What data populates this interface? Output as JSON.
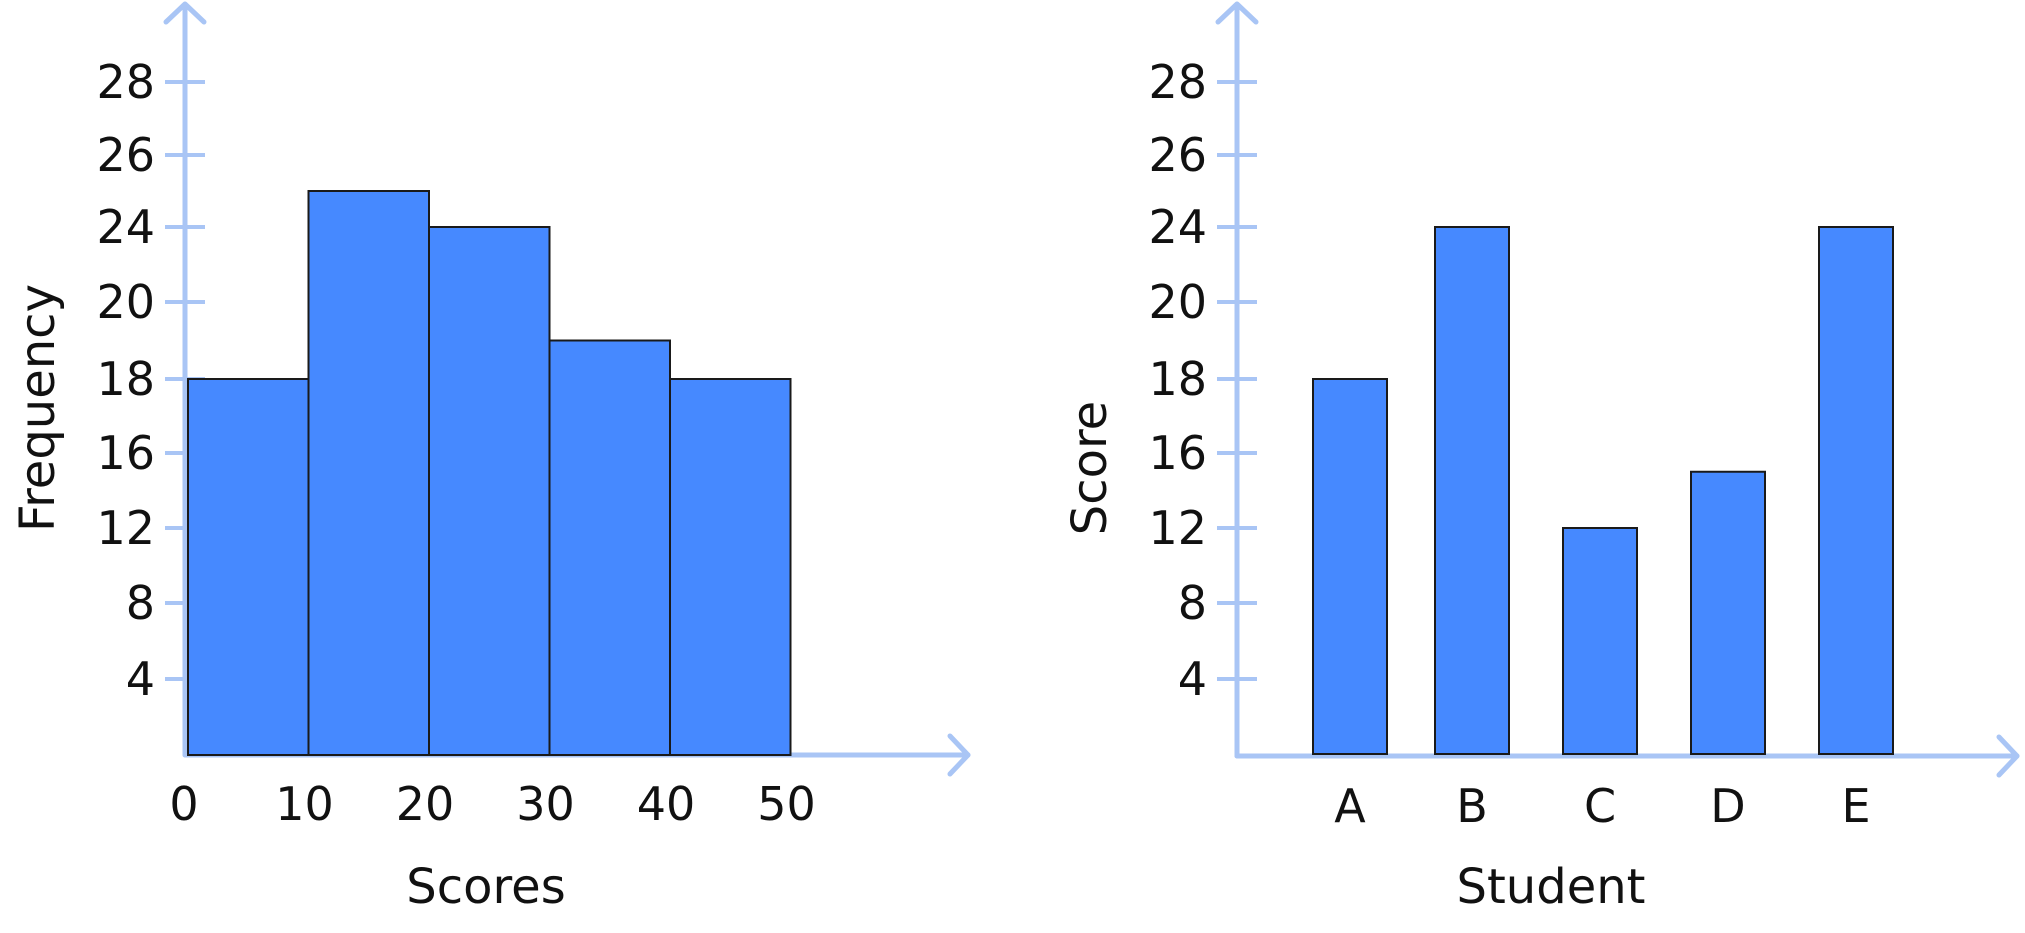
{
  "colors": {
    "bar_fill": "#4689ff",
    "bar_stroke": "#1a1a1a",
    "axis": "#a9c5f5",
    "text": "#111111"
  },
  "chart_data": [
    {
      "type": "bar",
      "subtype": "histogram",
      "title": "",
      "xlabel": "Scores",
      "ylabel": "Frequency",
      "x_tick_labels": [
        "0",
        "10",
        "20",
        "30",
        "40",
        "50"
      ],
      "y_tick_labels": [
        "4",
        "8",
        "12",
        "16",
        "18",
        "20",
        "24",
        "26",
        "28"
      ],
      "bins": [
        [
          0,
          10
        ],
        [
          10,
          20
        ],
        [
          20,
          30
        ],
        [
          30,
          40
        ],
        [
          40,
          50
        ]
      ],
      "values": [
        18,
        25,
        24,
        19,
        18
      ],
      "grid": false
    },
    {
      "type": "bar",
      "title": "",
      "xlabel": "Student",
      "ylabel": "Score",
      "categories": [
        "A",
        "B",
        "C",
        "D",
        "E"
      ],
      "y_tick_labels": [
        "4",
        "8",
        "12",
        "16",
        "18",
        "20",
        "24",
        "26",
        "28"
      ],
      "values": [
        18,
        24,
        12,
        15,
        24
      ],
      "grid": false
    }
  ]
}
